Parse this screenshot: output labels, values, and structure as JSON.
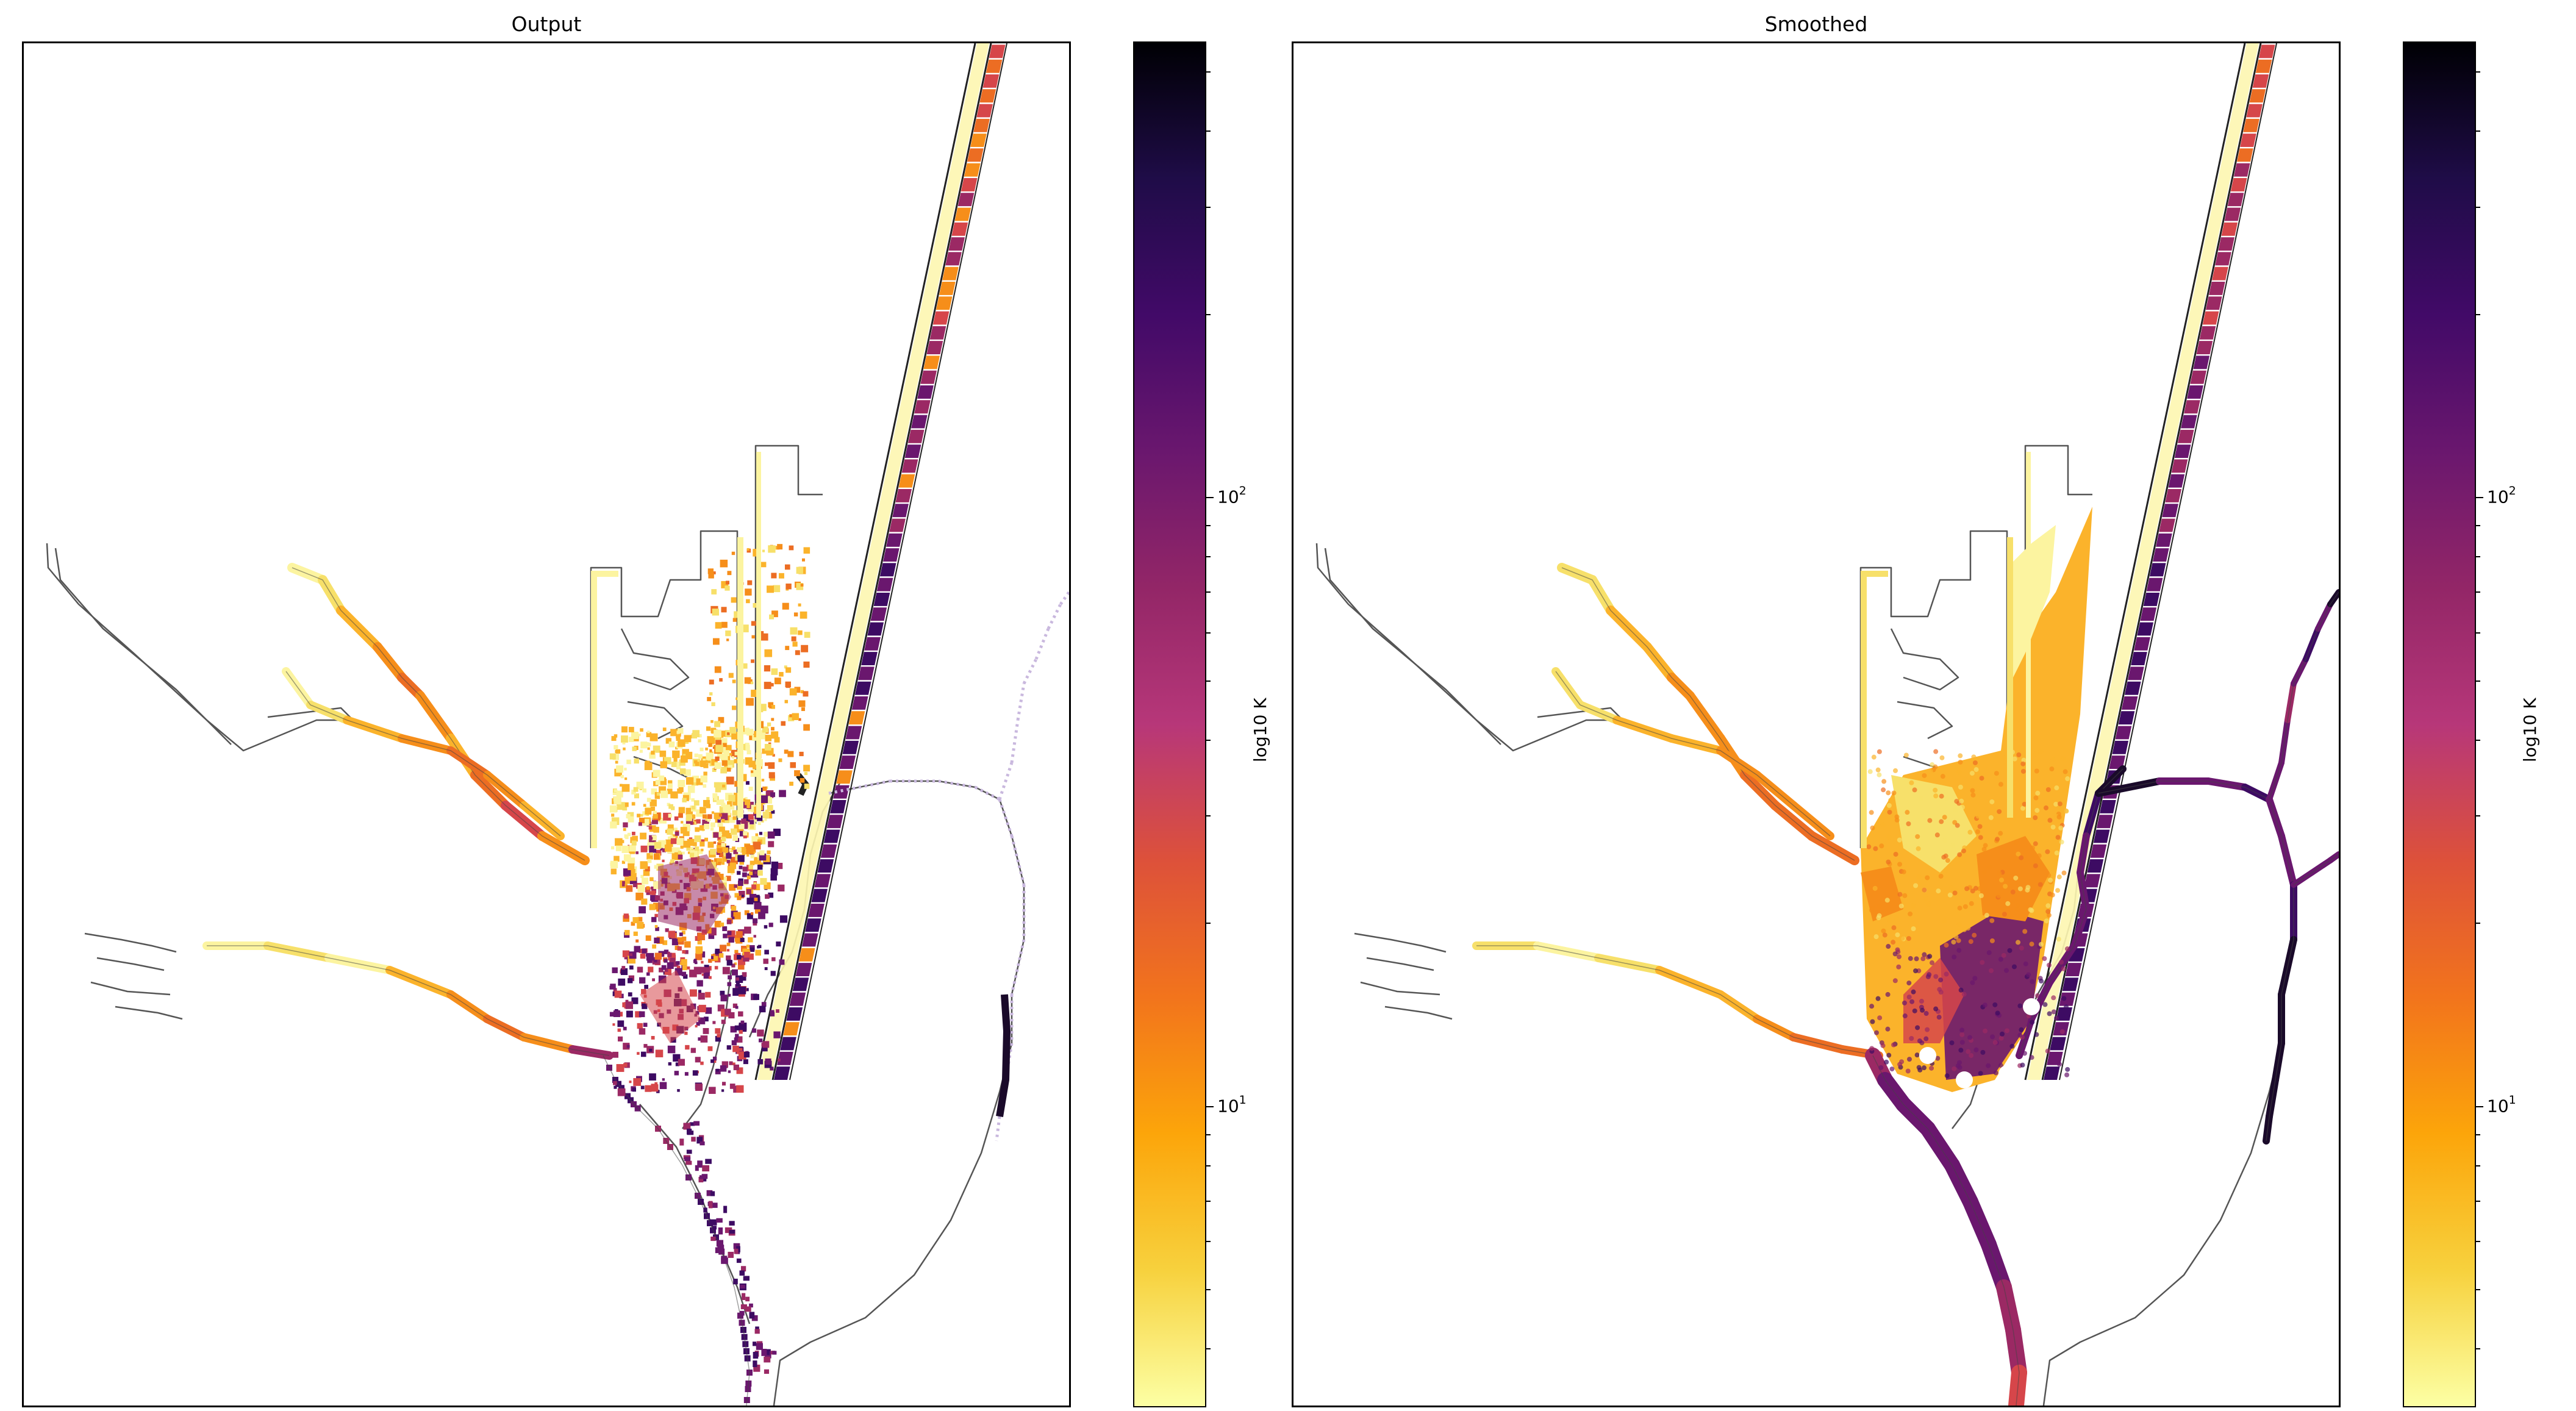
{
  "panels": [
    {
      "title": "Output",
      "variant": "scattered"
    },
    {
      "title": "Smoothed",
      "variant": "smooth"
    }
  ],
  "colorbar": {
    "label": "log10 K",
    "scale": "log",
    "colormap": "inferno_r",
    "colors_low_to_high": [
      "#fcffa4",
      "#f7d13d",
      "#fca50a",
      "#f2741c",
      "#dd513a",
      "#b73779",
      "#932667",
      "#6a176e",
      "#420a68",
      "#1f0c48",
      "#000004"
    ],
    "range": [
      3.2,
      560
    ],
    "major_ticks": [
      {
        "value": 10,
        "base": "10",
        "exp": "1"
      },
      {
        "value": 100,
        "base": "10",
        "exp": "2"
      }
    ],
    "minor_ticks": [
      4,
      5,
      6,
      7,
      8,
      9,
      20,
      30,
      40,
      50,
      60,
      70,
      80,
      90,
      200,
      300,
      400,
      500
    ]
  }
}
